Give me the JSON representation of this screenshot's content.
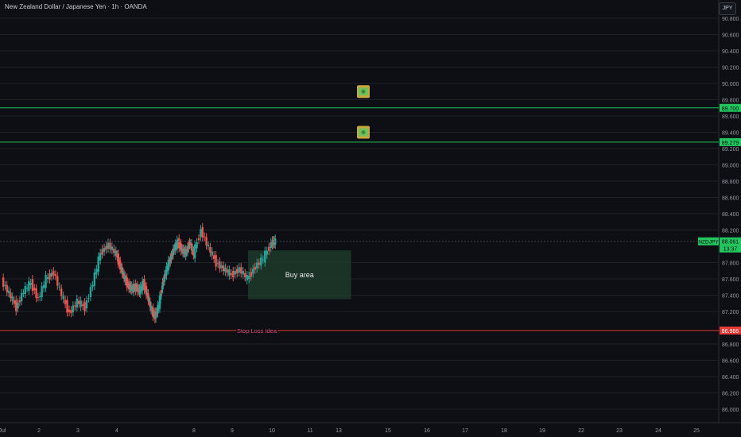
{
  "header": {
    "title": "New Zealand Dollar / Japanese Yen · 1h · OANDA",
    "currency_button": "JPY"
  },
  "colors": {
    "background": "#0d0f14",
    "up": "#26a69a",
    "down": "#ef5350",
    "grid": "#1e2129",
    "axis_text": "#9598a1",
    "target": "#22c55e",
    "stop": "#e53935",
    "buy_zone": "#1f3a2a",
    "price_tag": "#22c55e"
  },
  "chart_data": {
    "type": "line",
    "symbol": "NZDJPY",
    "price_axis": {
      "ylim": [
        85.9,
        90.9
      ],
      "ticks": [
        "90.800",
        "90.600",
        "90.400",
        "90.200",
        "90.000",
        "89.800",
        "89.600",
        "89.400",
        "89.200",
        "89.000",
        "88.800",
        "88.600",
        "88.400",
        "88.200",
        "87.800",
        "87.600",
        "87.400",
        "87.200",
        "86.800",
        "86.600",
        "86.400",
        "86.200",
        "86.000"
      ]
    },
    "time_axis": {
      "labels": [
        {
          "label": "Jul",
          "day": 1
        },
        {
          "label": "2",
          "day": 2
        },
        {
          "label": "3",
          "day": 3
        },
        {
          "label": "4",
          "day": 4
        },
        {
          "label": "8",
          "day": 8
        },
        {
          "label": "9",
          "day": 9
        },
        {
          "label": "10",
          "day": 10
        },
        {
          "label": "11",
          "day": 11
        },
        {
          "label": "13",
          "day": 13
        },
        {
          "label": "15",
          "day": 15
        },
        {
          "label": "16",
          "day": 16
        },
        {
          "label": "17",
          "day": 17
        },
        {
          "label": "18",
          "day": 18
        },
        {
          "label": "19",
          "day": 19
        },
        {
          "label": "22",
          "day": 22
        },
        {
          "label": "23",
          "day": 23
        },
        {
          "label": "24",
          "day": 24
        },
        {
          "label": "25",
          "day": 25
        }
      ]
    },
    "series": [
      {
        "values": [
          [
            1.0,
            87.58
          ],
          [
            1.2,
            87.42
          ],
          [
            1.4,
            87.25
          ],
          [
            1.6,
            87.45
          ],
          [
            1.8,
            87.55
          ],
          [
            2.0,
            87.35
          ],
          [
            2.2,
            87.6
          ],
          [
            2.4,
            87.68
          ],
          [
            2.6,
            87.4
          ],
          [
            2.8,
            87.18
          ],
          [
            3.0,
            87.32
          ],
          [
            3.2,
            87.25
          ],
          [
            3.4,
            87.55
          ],
          [
            3.6,
            87.92
          ],
          [
            3.8,
            88.02
          ],
          [
            4.0,
            87.9
          ],
          [
            4.2,
            87.75
          ],
          [
            4.4,
            87.62
          ],
          [
            4.6,
            87.52
          ],
          [
            4.8,
            87.48
          ],
          [
            5.0,
            87.5
          ],
          [
            5.2,
            87.45
          ],
          [
            5.4,
            87.55
          ],
          [
            5.6,
            87.4
          ],
          [
            5.8,
            87.22
          ],
          [
            6.0,
            87.14
          ],
          [
            6.2,
            87.28
          ],
          [
            6.4,
            87.55
          ],
          [
            6.6,
            87.72
          ],
          [
            6.8,
            87.85
          ],
          [
            7.0,
            87.98
          ],
          [
            7.2,
            88.05
          ],
          [
            7.4,
            87.95
          ],
          [
            7.6,
            87.92
          ],
          [
            7.8,
            88.05
          ],
          [
            8.0,
            87.9
          ],
          [
            8.2,
            88.2
          ],
          [
            8.4,
            87.98
          ],
          [
            8.6,
            87.8
          ],
          [
            8.8,
            87.72
          ],
          [
            9.0,
            87.65
          ],
          [
            9.2,
            87.72
          ],
          [
            9.4,
            87.6
          ],
          [
            9.6,
            87.75
          ],
          [
            9.8,
            87.85
          ],
          [
            10.0,
            88.04
          ],
          [
            10.1,
            88.06
          ]
        ]
      }
    ],
    "levels": [
      {
        "label": "89.700",
        "price": 89.7,
        "kind": "target"
      },
      {
        "label": "89.279",
        "price": 89.279,
        "kind": "target"
      },
      {
        "label": "86.966",
        "price": 86.966,
        "kind": "stop",
        "annotation": "Stop Loss Idea"
      }
    ],
    "current_price": {
      "symbol_label": "NZDJPY",
      "price": "88.061",
      "countdown": "13:37",
      "value": 88.061
    },
    "zones": [
      {
        "label": "Buy area",
        "from_day": 9.4,
        "to_day": 13.5,
        "price_top": 87.95,
        "price_bottom": 87.35
      }
    ],
    "markers": [
      {
        "icon": "money-icon",
        "day": 14.0,
        "price": 89.9
      },
      {
        "icon": "money-icon",
        "day": 14.0,
        "price": 89.4
      }
    ],
    "grid": true
  }
}
